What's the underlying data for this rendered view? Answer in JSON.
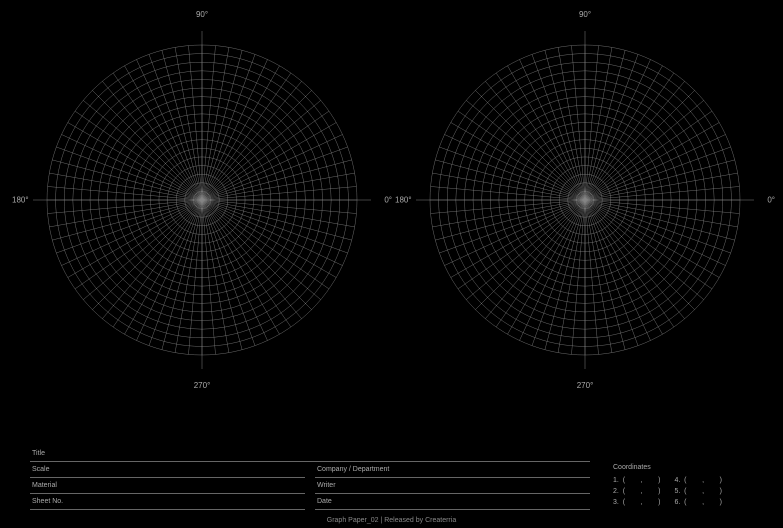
{
  "page": {
    "background_color": "#000000",
    "grid_color": "#888888",
    "label_color": "#aaaaaa",
    "rule_color": "#666666"
  },
  "polar": {
    "type": "polar-grid",
    "count": 2,
    "num_rings": 18,
    "num_spokes": 72,
    "outer_radius": 155,
    "line_width": 0.4,
    "axis_labels": {
      "top": "90°",
      "right": "0°",
      "bottom": "270°",
      "left": "180°"
    },
    "label_fontsize": 8
  },
  "info": {
    "fields": {
      "title": "Title",
      "scale": "Scale",
      "material": "Material",
      "sheet_no": "Sheet No.",
      "company": "Company / Department",
      "writer": "Writer",
      "date": "Date"
    }
  },
  "coordinates": {
    "heading": "Coordinates",
    "entries": [
      {
        "n": "1.",
        "open": "(",
        "sep": ",",
        "close": ")"
      },
      {
        "n": "2.",
        "open": "(",
        "sep": ",",
        "close": ")"
      },
      {
        "n": "3.",
        "open": "(",
        "sep": ",",
        "close": ")"
      },
      {
        "n": "4.",
        "open": "(",
        "sep": ",",
        "close": ")"
      },
      {
        "n": "5.",
        "open": "(",
        "sep": ",",
        "close": ")"
      },
      {
        "n": "6.",
        "open": "(",
        "sep": ",",
        "close": ")"
      }
    ]
  },
  "footer": {
    "text": "Graph Paper_02   |   Released by Createrria"
  }
}
